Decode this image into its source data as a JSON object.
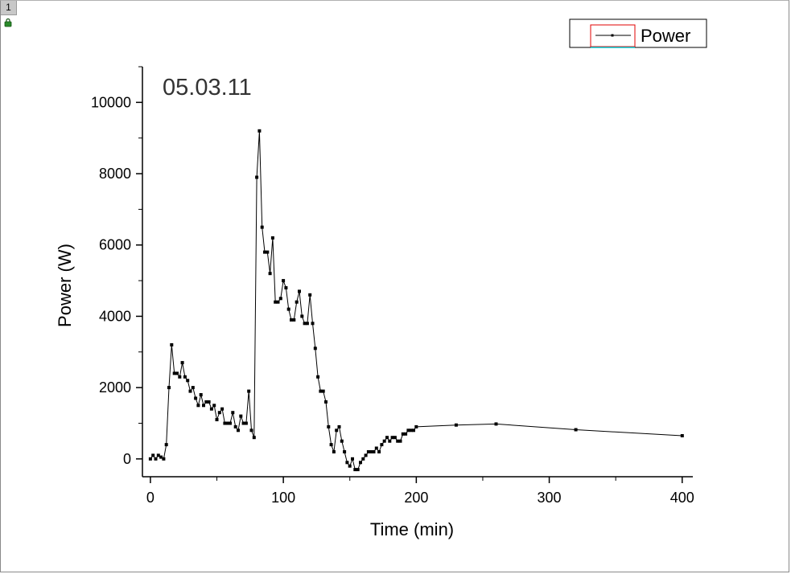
{
  "window": {
    "layer_label": "1",
    "lock_icon": "lock-icon"
  },
  "chart_data": {
    "type": "line",
    "annotation": "05.03.11",
    "xlabel": "Time (min)",
    "ylabel": "Power (W)",
    "xlim": [
      -6,
      408
    ],
    "ylim": [
      -500,
      11000
    ],
    "xticks": [
      0,
      100,
      200,
      300,
      400
    ],
    "yticks": [
      0,
      2000,
      4000,
      6000,
      8000,
      10000
    ],
    "grid": false,
    "legend_position": "top-right",
    "series": [
      {
        "name": "Power",
        "color": "#000000",
        "x": [
          0,
          2,
          4,
          6,
          8,
          10,
          12,
          14,
          16,
          18,
          20,
          22,
          24,
          26,
          28,
          30,
          32,
          34,
          36,
          38,
          40,
          42,
          44,
          46,
          48,
          50,
          52,
          54,
          56,
          58,
          60,
          62,
          64,
          66,
          68,
          70,
          72,
          74,
          76,
          78,
          80,
          82,
          84,
          86,
          88,
          90,
          92,
          94,
          96,
          98,
          100,
          102,
          104,
          106,
          108,
          110,
          112,
          114,
          116,
          118,
          120,
          122,
          124,
          126,
          128,
          130,
          132,
          134,
          136,
          138,
          140,
          142,
          144,
          146,
          148,
          150,
          152,
          154,
          156,
          158,
          160,
          162,
          164,
          166,
          168,
          170,
          172,
          174,
          176,
          178,
          180,
          182,
          184,
          186,
          188,
          190,
          192,
          194,
          196,
          198,
          200,
          230,
          260,
          320,
          400
        ],
        "y": [
          0,
          100,
          0,
          100,
          50,
          0,
          400,
          2000,
          3200,
          2400,
          2400,
          2300,
          2700,
          2300,
          2200,
          1900,
          2000,
          1700,
          1500,
          1800,
          1500,
          1600,
          1600,
          1400,
          1500,
          1100,
          1300,
          1400,
          1000,
          1000,
          1000,
          1300,
          900,
          800,
          1200,
          1000,
          1000,
          1900,
          800,
          600,
          7900,
          9200,
          6500,
          5800,
          5800,
          5200,
          6200,
          4400,
          4400,
          4500,
          5000,
          4800,
          4200,
          3900,
          3900,
          4400,
          4700,
          4000,
          3800,
          3800,
          4600,
          3800,
          3100,
          2300,
          1900,
          1900,
          1600,
          900,
          400,
          200,
          800,
          900,
          500,
          200,
          -100,
          -200,
          0,
          -300,
          -300,
          -100,
          0,
          100,
          200,
          200,
          200,
          300,
          200,
          400,
          500,
          600,
          500,
          600,
          600,
          500,
          500,
          700,
          700,
          800,
          800,
          800,
          900,
          950,
          980,
          820,
          650
        ]
      }
    ]
  }
}
